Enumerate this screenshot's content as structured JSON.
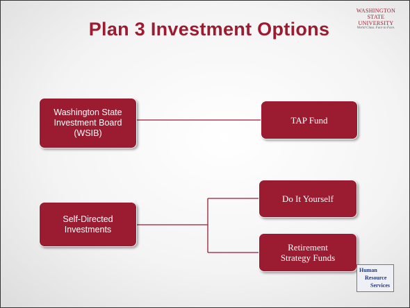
{
  "header": {
    "title": "Plan 3 Investment Options",
    "logo": {
      "lines": [
        "WASHINGTON STATE",
        "UNIVERSITY"
      ],
      "tagline": "World Class. Face to Face."
    }
  },
  "nodes": [
    {
      "lines": [
        "Washington State",
        "Investment Board",
        "(WSIB)"
      ]
    },
    {
      "lines": [
        "TAP Fund"
      ]
    },
    {
      "lines": [
        "Self-Directed",
        "Investments"
      ]
    },
    {
      "lines": [
        "Do It Yourself"
      ]
    },
    {
      "lines": [
        "Retirement",
        "Strategy Funds"
      ]
    }
  ],
  "footer_logo": {
    "lines": [
      "Human",
      "Resource",
      "Services"
    ]
  }
}
